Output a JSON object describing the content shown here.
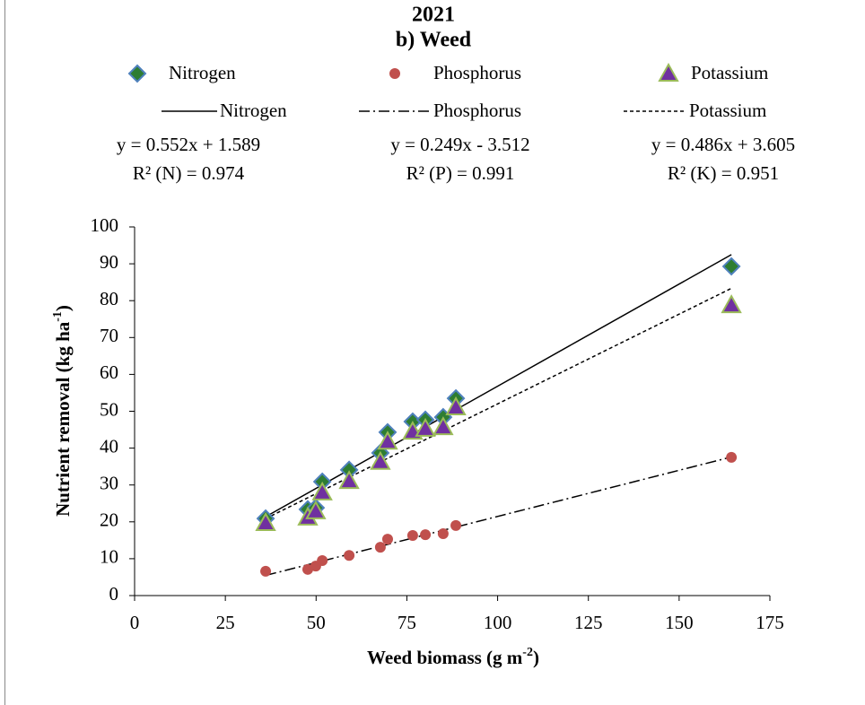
{
  "chart_data": {
    "type": "scatter",
    "title": "2021",
    "subtitle": "b) Weed",
    "x_label": {
      "text": "Weed biomass (g m",
      "sup": "-2",
      "end": ")"
    },
    "y_label": {
      "text": "Nutrient removal (kg ha",
      "sup": "-1",
      "end": ")"
    },
    "x": [
      36.1,
      47.7,
      49.9,
      51.7,
      59.1,
      67.7,
      69.7,
      76.6,
      80.1,
      85.0,
      88.5,
      164.4
    ],
    "series": [
      {
        "name": "Nitrogen",
        "color": "#2e7d32",
        "stroke": "#4f81bd",
        "marker": "diamond",
        "trend": "solid",
        "values": [
          20.9,
          23.4,
          23.8,
          30.9,
          34.1,
          38.7,
          44.3,
          47.2,
          47.7,
          48.4,
          53.5,
          89.3
        ]
      },
      {
        "name": "Phosphorus",
        "color": "#c0504d",
        "stroke": "#c0504d",
        "marker": "circle",
        "trend": "dashdot",
        "values": [
          6.6,
          7.1,
          8.0,
          9.5,
          10.9,
          13.1,
          15.3,
          16.3,
          16.5,
          16.8,
          19.0,
          37.5
        ]
      },
      {
        "name": "Potassium",
        "color": "#7030a0",
        "stroke": "#9bbb59",
        "marker": "triangle",
        "trend": "dash",
        "values": [
          19.7,
          21.2,
          22.9,
          28.0,
          31.1,
          36.3,
          41.8,
          44.5,
          45.3,
          45.7,
          51.1,
          78.8
        ]
      }
    ],
    "annotations": [
      {
        "equation": "y = 0.552x + 1.589",
        "r2": "R²  (N) = 0.974"
      },
      {
        "equation": "y = 0.249x - 3.512",
        "r2": "R²  (P) = 0.991"
      },
      {
        "equation": "y = 0.486x + 3.605",
        "r2": "R² (K) = 0.951"
      }
    ],
    "xlim": [
      0,
      175
    ],
    "xticks": [
      0,
      25,
      50,
      75,
      100,
      125,
      150,
      175
    ],
    "ylim": [
      0,
      100
    ],
    "yticks": [
      0,
      10,
      20,
      30,
      40,
      50,
      60,
      70,
      80,
      90,
      100
    ]
  }
}
